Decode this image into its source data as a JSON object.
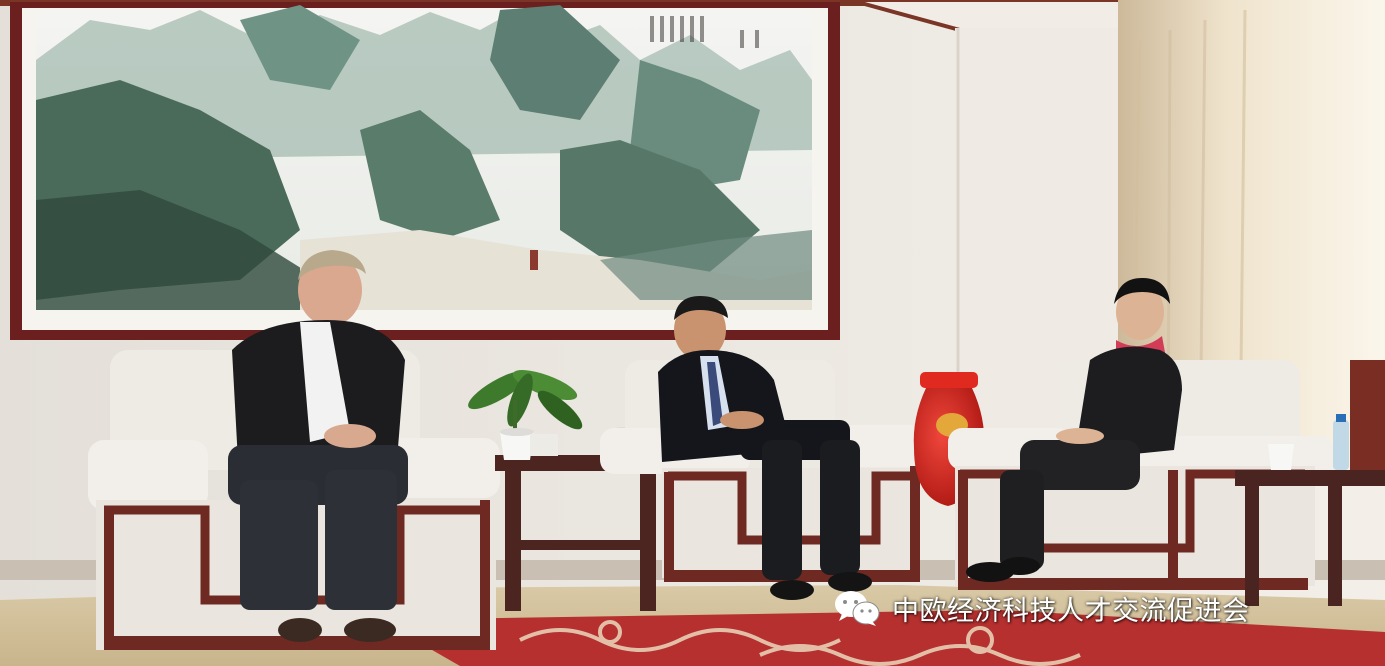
{
  "watermark": {
    "text": "中欧经济科技人才交流促进会",
    "icon": "wechat-icon"
  },
  "colors": {
    "wall": "#ece8e1",
    "painting_frame": "#6b1f1e",
    "sofa": "#efece6",
    "sofa_trim": "#6e2a22",
    "carpet": "#b5302f",
    "vase": "#d8231c",
    "curtain": "#d9c7a8"
  }
}
